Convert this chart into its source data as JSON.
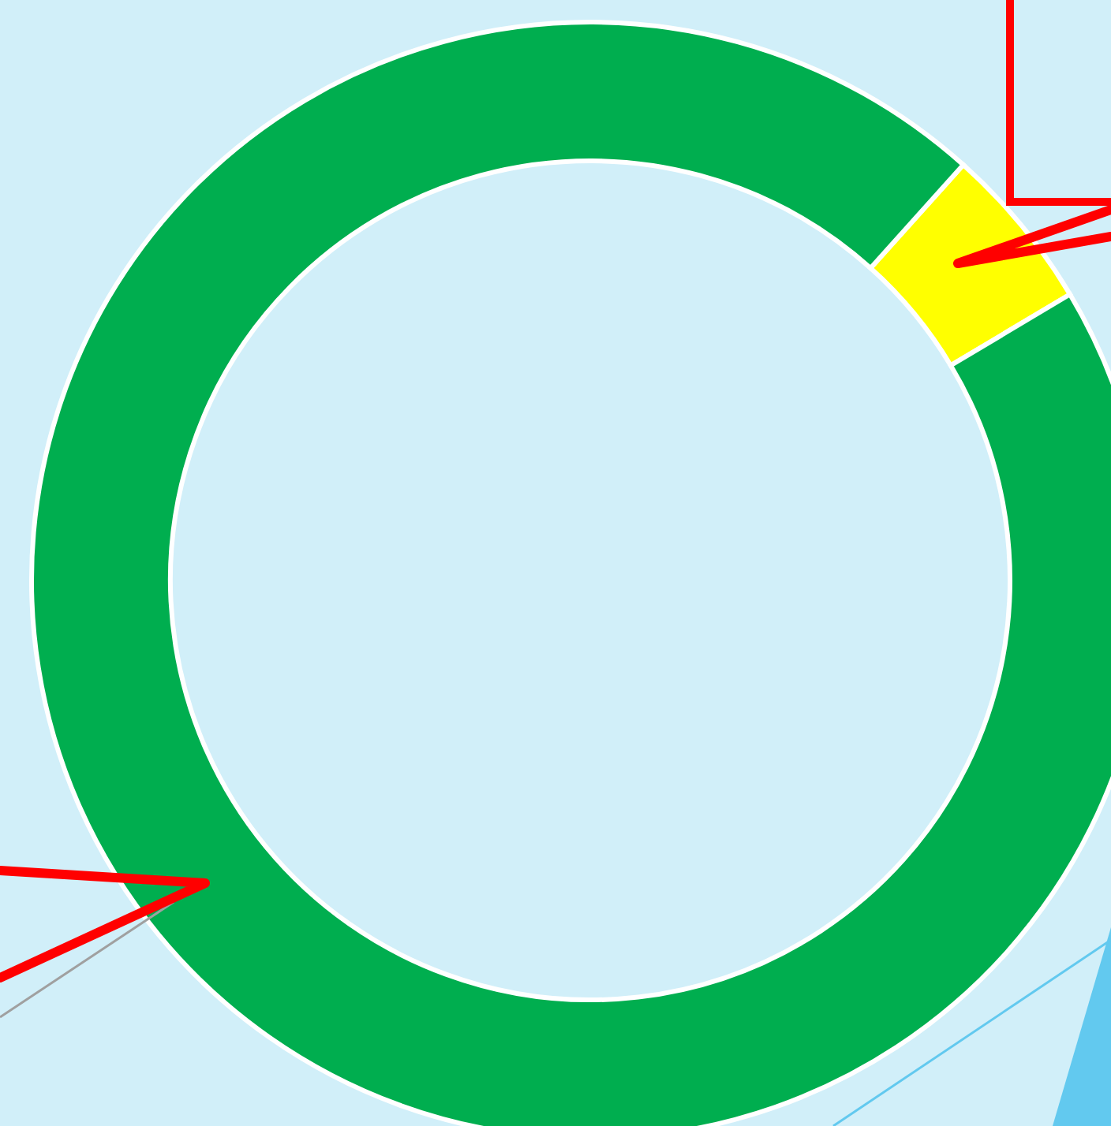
{
  "chart_data": {
    "type": "donut",
    "categories": [
      null,
      null
    ],
    "values": [
      4.8,
      95.2
    ],
    "colors": [
      "#ffff00",
      "#00ae4f"
    ],
    "legend": false
  }
}
